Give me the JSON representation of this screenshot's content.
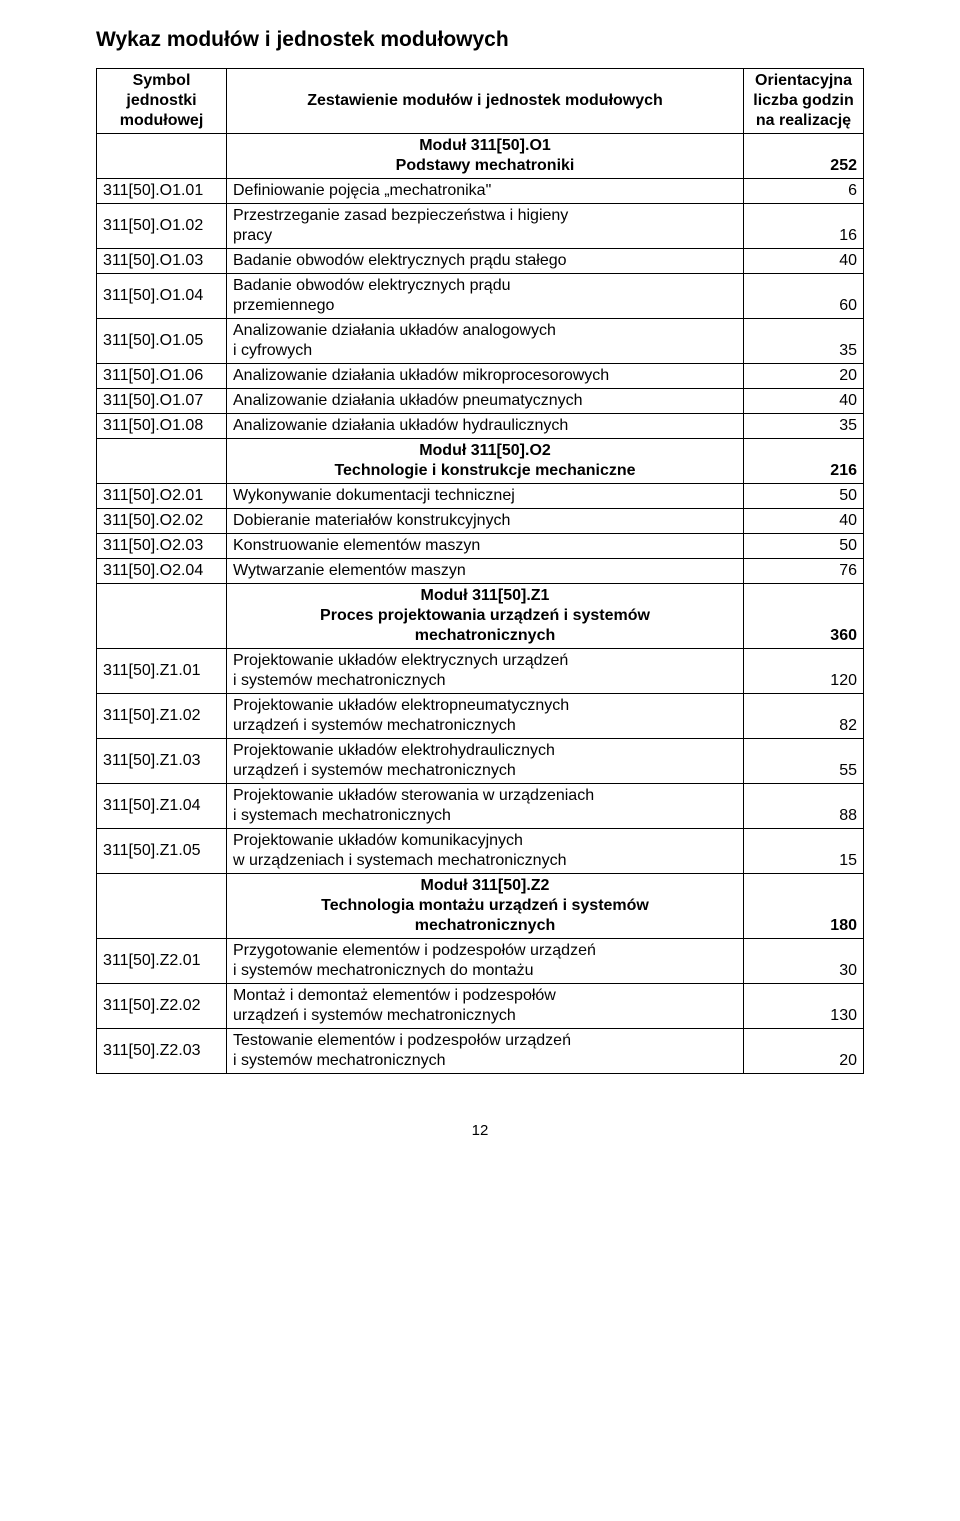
{
  "title": "Wykaz modułów i jednostek modułowych",
  "page_number": "12",
  "header": {
    "col1_l1": "Symbol",
    "col1_l2": "jednostki",
    "col1_l3": "modułowej",
    "col2": "Zestawienie modułów i jednostek modułowych",
    "col3_l1": "Orientacyjna",
    "col3_l2": "liczba godzin",
    "col3_l3": "na realizację"
  },
  "modules": {
    "O1": {
      "name_l1": "Moduł 311[50].O1",
      "name_l2": "Podstawy mechatroniki",
      "hours": "252"
    },
    "O2": {
      "name_l1": "Moduł 311[50].O2",
      "name_l2": "Technologie i konstrukcje mechaniczne",
      "hours": "216"
    },
    "Z1": {
      "name_l1": "Moduł 311[50].Z1",
      "name_l2": "Proces projektowania urządzeń i systemów",
      "name_l3": "mechatronicznych",
      "hours": "360"
    },
    "Z2": {
      "name_l1": "Moduł 311[50].Z2",
      "name_l2": "Technologia montażu urządzeń i systemów",
      "name_l3": "mechatronicznych",
      "hours": "180"
    }
  },
  "rows": {
    "o1_01": {
      "sym": "311[50].O1.01",
      "desc": "Definiowanie pojęcia „mechatronika\"",
      "hrs": "6"
    },
    "o1_02": {
      "sym": "311[50].O1.02",
      "desc_l1": "Przestrzeganie zasad bezpieczeństwa i higieny",
      "desc_l2": "pracy",
      "hrs": "16"
    },
    "o1_03": {
      "sym": "311[50].O1.03",
      "desc": "Badanie obwodów elektrycznych prądu stałego",
      "hrs": "40"
    },
    "o1_04": {
      "sym": "311[50].O1.04",
      "desc_l1": "Badanie obwodów elektrycznych prądu",
      "desc_l2": "przemiennego",
      "hrs": "60"
    },
    "o1_05": {
      "sym": "311[50].O1.05",
      "desc_l1": "Analizowanie działania układów analogowych",
      "desc_l2": "i cyfrowych",
      "hrs": "35"
    },
    "o1_06": {
      "sym": "311[50].O1.06",
      "desc": "Analizowanie działania układów mikroprocesorowych",
      "hrs": "20"
    },
    "o1_07": {
      "sym": "311[50].O1.07",
      "desc": "Analizowanie działania układów pneumatycznych",
      "hrs": "40"
    },
    "o1_08": {
      "sym": "311[50].O1.08",
      "desc": "Analizowanie działania układów hydraulicznych",
      "hrs": "35"
    },
    "o2_01": {
      "sym": "311[50].O2.01",
      "desc": "Wykonywanie dokumentacji technicznej",
      "hrs": "50"
    },
    "o2_02": {
      "sym": "311[50].O2.02",
      "desc": "Dobieranie materiałów konstrukcyjnych",
      "hrs": "40"
    },
    "o2_03": {
      "sym": "311[50].O2.03",
      "desc": "Konstruowanie elementów maszyn",
      "hrs": "50"
    },
    "o2_04": {
      "sym": "311[50].O2.04",
      "desc": "Wytwarzanie elementów maszyn",
      "hrs": "76"
    },
    "z1_01": {
      "sym": "311[50].Z1.01",
      "desc_l1": "Projektowanie układów elektrycznych urządzeń",
      "desc_l2": "i systemów mechatronicznych",
      "hrs": "120"
    },
    "z1_02": {
      "sym": "311[50].Z1.02",
      "desc_l1": "Projektowanie układów elektropneumatycznych",
      "desc_l2": "urządzeń i systemów mechatronicznych",
      "hrs": "82"
    },
    "z1_03": {
      "sym": "311[50].Z1.03",
      "desc_l1": "Projektowanie układów elektrohydraulicznych",
      "desc_l2": "urządzeń i systemów mechatronicznych",
      "hrs": "55"
    },
    "z1_04": {
      "sym": "311[50].Z1.04",
      "desc_l1": "Projektowanie układów sterowania w urządzeniach",
      "desc_l2": "i systemach mechatronicznych",
      "hrs": "88"
    },
    "z1_05": {
      "sym": "311[50].Z1.05",
      "desc_l1": "Projektowanie układów komunikacyjnych",
      "desc_l2": "w urządzeniach i systemach mechatronicznych",
      "hrs": "15"
    },
    "z2_01": {
      "sym": "311[50].Z2.01",
      "desc_l1": "Przygotowanie elementów i podzespołów urządzeń",
      "desc_l2": "i systemów mechatronicznych do montażu",
      "hrs": "30"
    },
    "z2_02": {
      "sym": "311[50].Z2.02",
      "desc_l1": "Montaż i demontaż elementów i podzespołów",
      "desc_l2": "urządzeń i systemów mechatronicznych",
      "hrs": "130"
    },
    "z2_03": {
      "sym": "311[50].Z2.03",
      "desc_l1": "Testowanie elementów i podzespołów urządzeń",
      "desc_l2": "i systemów mechatronicznych",
      "hrs": "20"
    }
  }
}
